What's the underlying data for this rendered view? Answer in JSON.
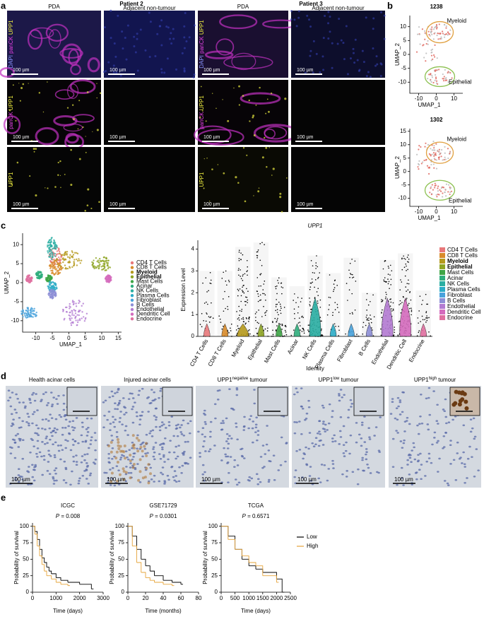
{
  "panel_a": {
    "letter": "a",
    "patients": [
      "Patient 2",
      "Patient 3"
    ],
    "columns": [
      "PDA",
      "Adjacent non-tumour",
      "PDA",
      "Adjacent non-tumour"
    ],
    "rows": [
      [
        {
          "text": "DAPI",
          "color": "#8a94ff"
        },
        {
          "text": "panCK",
          "color": "#e040e0"
        },
        {
          "text": "UPP1",
          "color": "#f0f040"
        }
      ],
      [
        {
          "text": "panCK",
          "color": "#e040e0"
        },
        {
          "text": "UPP1",
          "color": "#f0f040"
        }
      ],
      [
        {
          "text": "UPP1",
          "color": "#f0f040"
        }
      ]
    ],
    "scale_bar": "100 µm"
  },
  "panel_b": {
    "letter": "b",
    "xlabel": "UMAP_1",
    "ylabel": "UMAP_2",
    "clusters": [
      {
        "name": "Myeloid",
        "color": "#e0a040"
      },
      {
        "name": "Epithelial",
        "color": "#8cc050"
      }
    ],
    "plots": [
      {
        "title": "1238",
        "xlim": [
          -15,
          15
        ],
        "ylim": [
          -14,
          14
        ],
        "xticks": [
          -10,
          0,
          10
        ],
        "yticks": [
          10,
          5,
          0,
          -5,
          -10
        ]
      },
      {
        "title": "1302",
        "xlim": [
          -15,
          15
        ],
        "ylim": [
          -13,
          16
        ],
        "xticks": [
          -10,
          0,
          10
        ],
        "yticks": [
          15,
          10,
          5,
          0,
          -5,
          -10
        ]
      }
    ]
  },
  "panel_c": {
    "letter": "c",
    "cell_types": [
      "CD4 T Cells",
      "CD8 T Cells",
      "Myeloid",
      "Epithelial",
      "Mast Cells",
      "Acinar",
      "NK Cells",
      "Plasma Cells",
      "Fibroblast",
      "B Cells",
      "Endothelial",
      "Dendritic Cell",
      "Endocrine"
    ],
    "colors": [
      "#e8787a",
      "#d98b2b",
      "#b59a1e",
      "#8fa524",
      "#3fa546",
      "#2fae7d",
      "#2aaea2",
      "#2cacc7",
      "#49a2dc",
      "#8d8ed6",
      "#b37bd2",
      "#d46bbd",
      "#e070a0"
    ],
    "bold_indices": [
      2,
      3
    ],
    "umap": {
      "xlabel": "UMAP_1",
      "ylabel": "UMAP_2",
      "xlim": [
        -14,
        16
      ],
      "ylim": [
        -13,
        13
      ],
      "xticks": [
        -10,
        -5,
        0,
        5,
        10,
        15
      ],
      "yticks": [
        -10,
        -5,
        0,
        5,
        10
      ]
    },
    "violin": {
      "title": "UPP1",
      "ylabel": "Expression Level",
      "xlabel": "Identity",
      "ylim": [
        0,
        4.4
      ],
      "yticks": [
        0,
        1,
        2,
        3,
        4
      ],
      "max_values": [
        3.0,
        3.0,
        4.1,
        4.3,
        2.7,
        2.3,
        3.7,
        2.9,
        3.6,
        2.0,
        3.5,
        3.8,
        2.1
      ]
    }
  },
  "panel_d": {
    "letter": "d",
    "scale_bar": "100 µm",
    "images": [
      {
        "text": "Health acinar cells"
      },
      {
        "text": "Injured acinar cells"
      },
      {
        "text": "UPP1",
        "sup": "negative",
        "rest": " tumour"
      },
      {
        "text": "UPP1",
        "sup": "low",
        "rest": " tumour"
      },
      {
        "text": "UPP1",
        "sup": "high",
        "rest": " tumour"
      }
    ]
  },
  "panel_e": {
    "letter": "e",
    "ylabel": "Probability of survival",
    "ylim": [
      0,
      105
    ],
    "yticks": [
      0,
      25,
      50,
      75,
      100
    ],
    "legend": [
      {
        "name": "Low",
        "color": "#000000"
      },
      {
        "name": "High",
        "color": "#e6a43a"
      }
    ],
    "plots": [
      {
        "title": "ICGC",
        "p_symbol": "P",
        "p_text": "= 0.008",
        "xlabel": "Time (days)",
        "xlim": [
          0,
          3000
        ],
        "xticks": [
          0,
          1000,
          2000,
          3000
        ],
        "series": [
          {
            "x": [
              0,
              100,
              200,
              300,
              400,
              500,
              600,
              700,
              800,
              1000,
              1200,
              1500,
              2000,
              2500
            ],
            "y": [
              100,
              92,
              80,
              65,
              52,
              45,
              38,
              32,
              28,
              22,
              18,
              15,
              12,
              5
            ]
          },
          {
            "x": [
              0,
              100,
              200,
              300,
              400,
              500,
              600,
              800,
              1000,
              1200,
              1500
            ],
            "y": [
              100,
              88,
              70,
              55,
              42,
              32,
              25,
              20,
              15,
              12,
              10
            ]
          }
        ]
      },
      {
        "title": "GSE71729",
        "p_symbol": "P",
        "p_text": "= 0.0301",
        "xlabel": "Time (months)",
        "xlim": [
          0,
          80
        ],
        "xticks": [
          0,
          20,
          40,
          60,
          80
        ],
        "series": [
          {
            "x": [
              0,
              5,
              10,
              15,
              20,
              25,
              30,
              40,
              50,
              60
            ],
            "y": [
              100,
              85,
              65,
              50,
              40,
              32,
              25,
              18,
              15,
              12
            ]
          },
          {
            "x": [
              0,
              5,
              10,
              15,
              20,
              25,
              30,
              40,
              50
            ],
            "y": [
              100,
              70,
              45,
              30,
              22,
              18,
              15,
              12,
              10
            ]
          }
        ]
      },
      {
        "title": "TCGA",
        "p_symbol": "P",
        "p_text": "= 0.6571",
        "xlabel": "Time (days)",
        "xlim": [
          0,
          2500
        ],
        "xticks": [
          0,
          500,
          1000,
          1500,
          2000,
          2500
        ],
        "series": [
          {
            "x": [
              0,
              250,
              500,
              750,
              1000,
              1250,
              1500,
              2000,
              2200
            ],
            "y": [
              100,
              85,
              65,
              50,
              40,
              35,
              30,
              20,
              0
            ]
          },
          {
            "x": [
              0,
              250,
              500,
              750,
              1000,
              1250,
              1500,
              2000
            ],
            "y": [
              100,
              80,
              65,
              55,
              45,
              40,
              25,
              15
            ]
          }
        ]
      }
    ]
  }
}
